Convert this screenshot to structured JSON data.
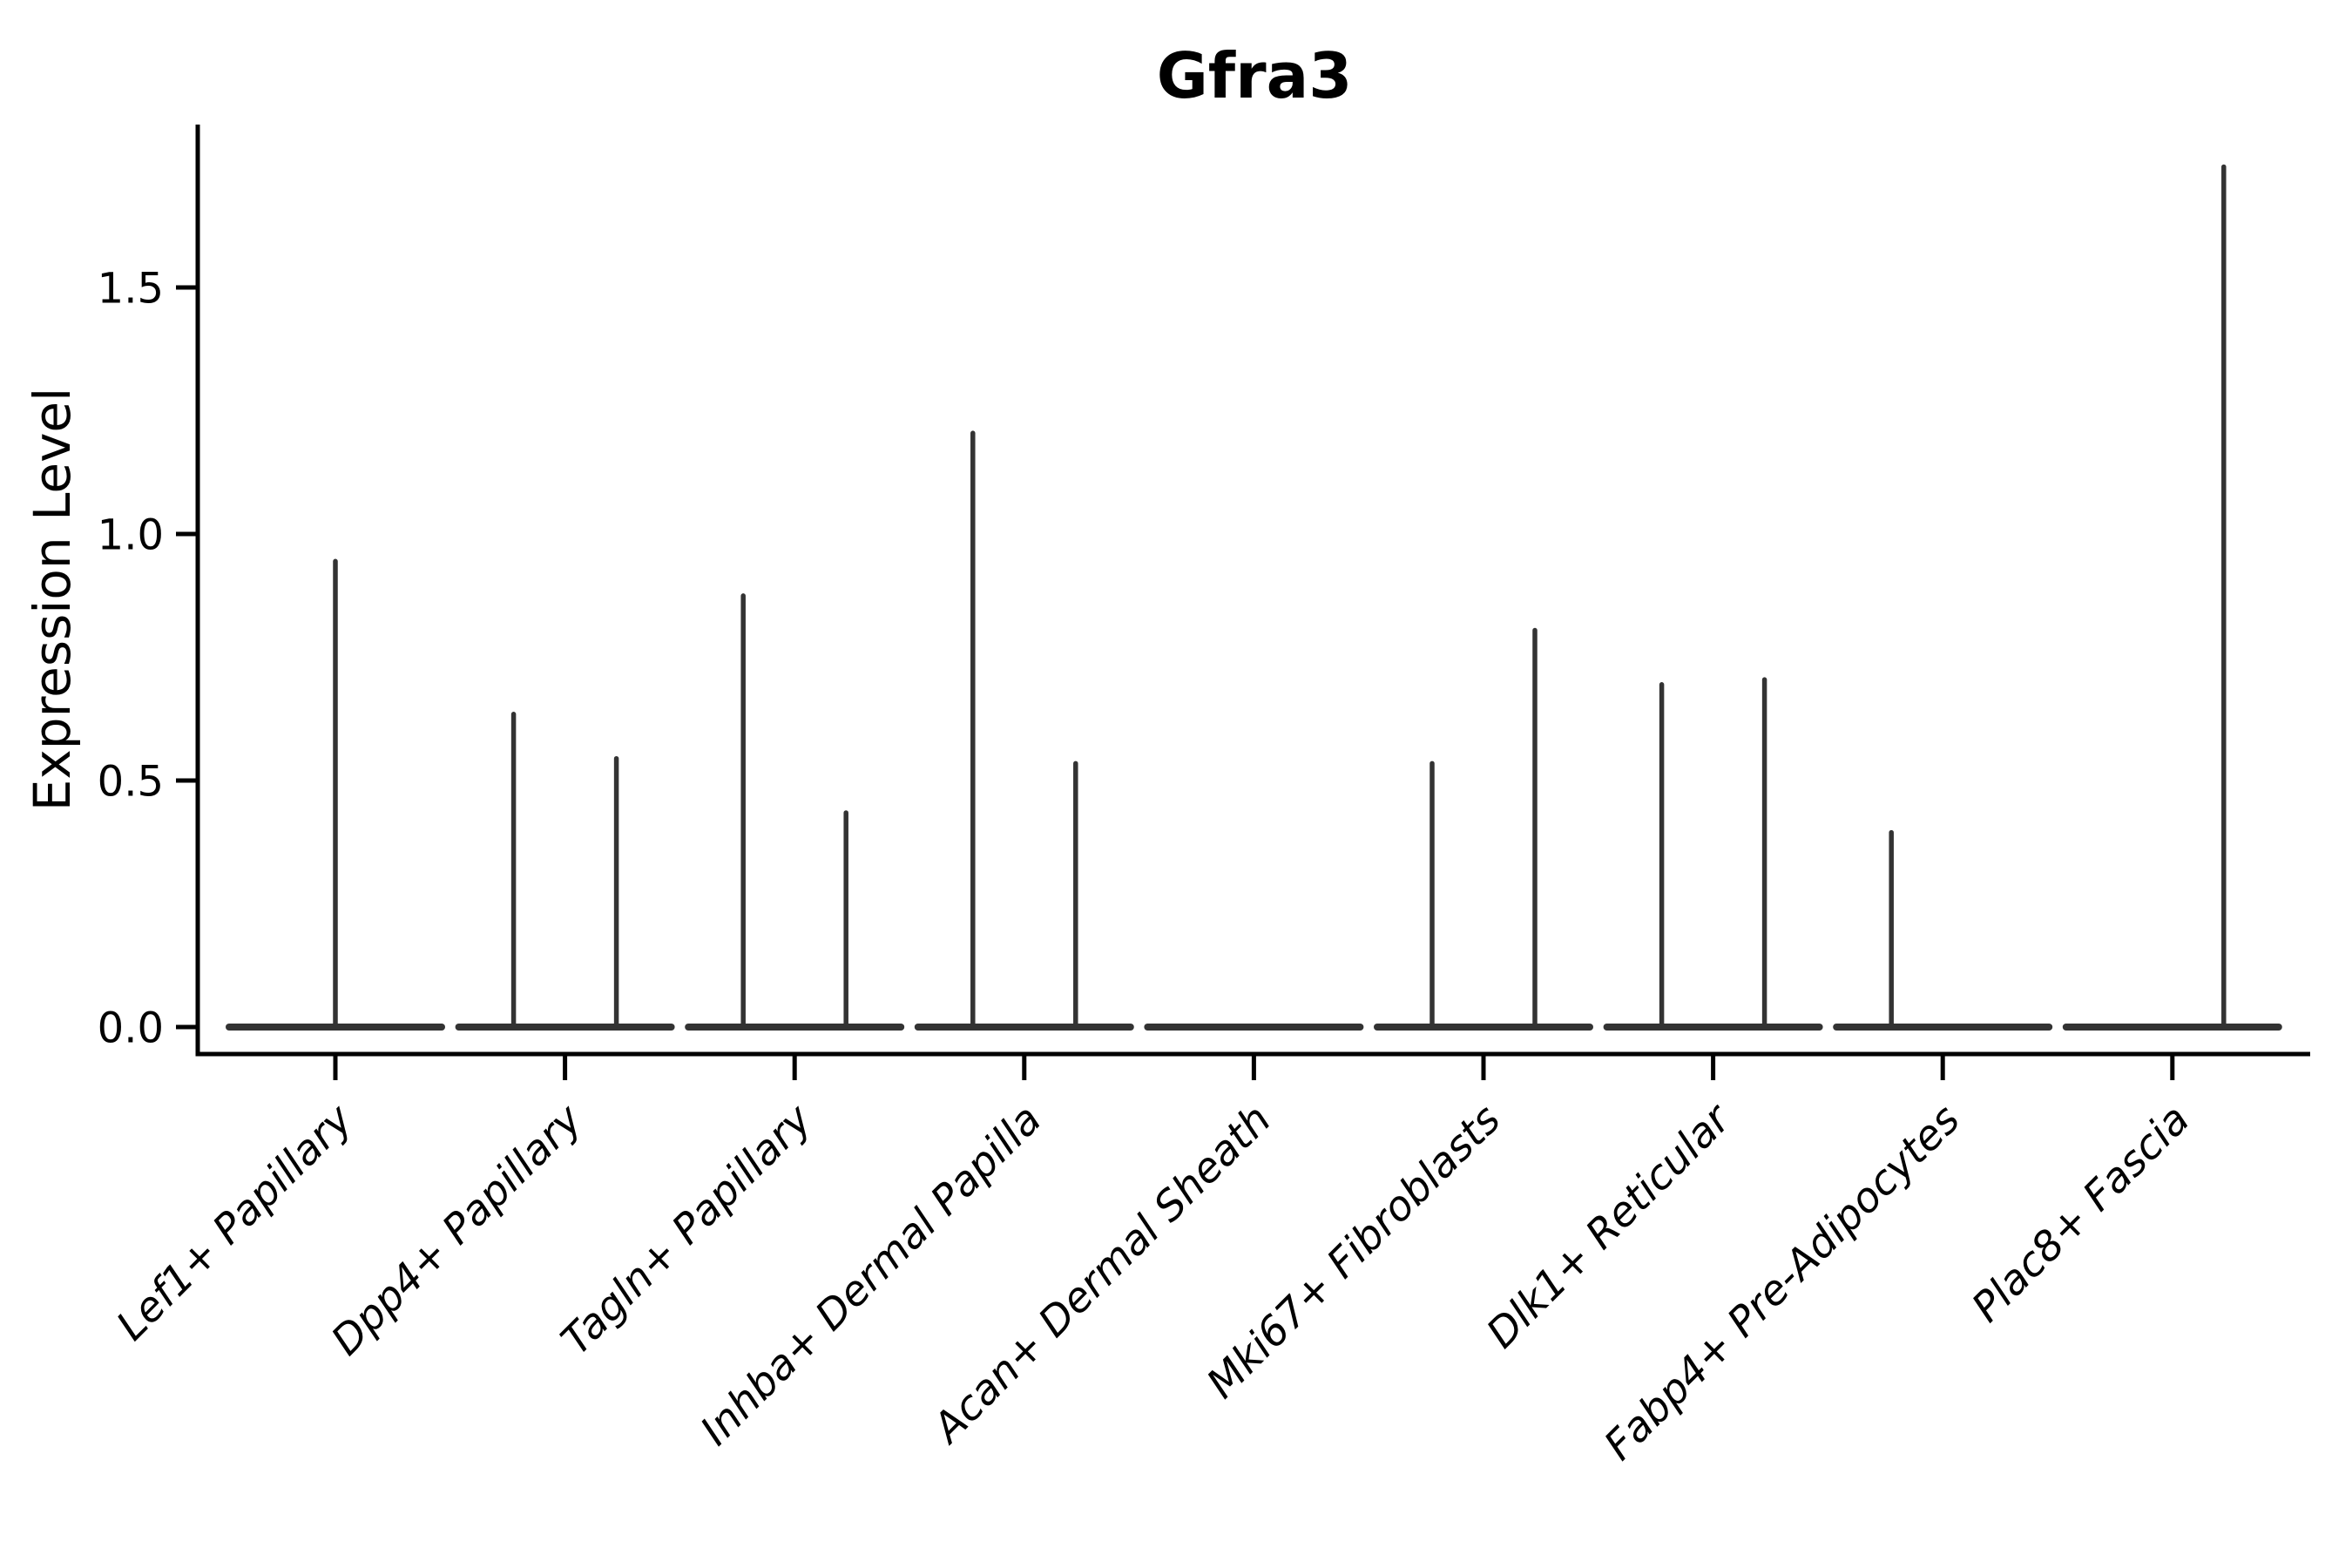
{
  "figure": {
    "title": "Gfra3"
  },
  "chart_data": {
    "type": "violin",
    "title": "Gfra3",
    "ylabel": "Expression Level",
    "xlabel": "",
    "ylim": [
      -0.06,
      1.84
    ],
    "yticks": [
      0.0,
      0.5,
      1.0,
      1.5
    ],
    "ytick_labels": [
      "0.0",
      "0.5",
      "1.0",
      "1.5"
    ],
    "grid": false,
    "legend": "none",
    "base_value": 0.0,
    "violin_style": "flat base at zero with thin max-expression spikes; two split spikes per group when present",
    "colors": {
      "violin": "#333333",
      "axis": "#000000",
      "background": "#ffffff"
    },
    "categories": [
      {
        "label": "Lef1+ Papillary",
        "spikes": [
          {
            "position": "center",
            "value": 0.95
          }
        ]
      },
      {
        "label": "Dpp4+ Papillary",
        "spikes": [
          {
            "position": "left",
            "value": 0.64
          },
          {
            "position": "right",
            "value": 0.55
          }
        ]
      },
      {
        "label": "Tagln+ Papillary",
        "spikes": [
          {
            "position": "left",
            "value": 0.88
          },
          {
            "position": "right",
            "value": 0.44
          }
        ]
      },
      {
        "label": "Inhba+ Dermal Papilla",
        "spikes": [
          {
            "position": "left",
            "value": 1.21
          },
          {
            "position": "right",
            "value": 0.54
          }
        ]
      },
      {
        "label": "Acan+ Dermal Sheath",
        "spikes": []
      },
      {
        "label": "Mki67+ Fibroblasts",
        "spikes": [
          {
            "position": "left",
            "value": 0.54
          },
          {
            "position": "right",
            "value": 0.81
          }
        ]
      },
      {
        "label": "Dlk1+ Reticular",
        "spikes": [
          {
            "position": "left",
            "value": 0.7
          },
          {
            "position": "right",
            "value": 0.71
          }
        ]
      },
      {
        "label": "Fabp4+ Pre-Adipocytes",
        "spikes": [
          {
            "position": "left",
            "value": 0.4
          }
        ]
      },
      {
        "label": "Plac8+ Fascia",
        "spikes": [
          {
            "position": "right",
            "value": 1.75
          }
        ]
      }
    ]
  }
}
